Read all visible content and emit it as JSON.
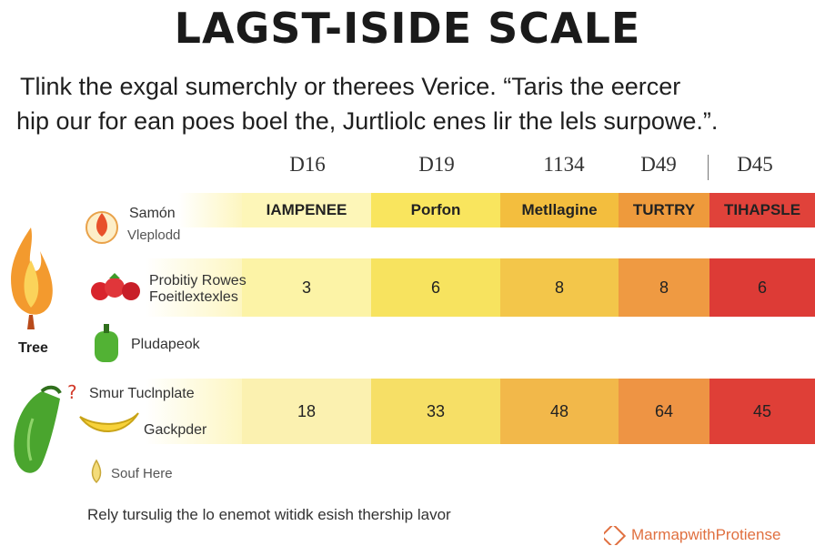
{
  "title": "LAGST-ISIDE SCALE",
  "intro": {
    "line1": "Tlink the exgal sumerchly or therees Verice. “Taris the eercer",
    "line2": "hip our for ean poes boel the, Jurtliolc enes lir the lels surpowe.”."
  },
  "columns": [
    "D16",
    "D19",
    "1134",
    "D49",
    "D45"
  ],
  "level_labels": [
    "IAMPENEE",
    "Porfon",
    "Metllagine",
    "TURTRY",
    "TIHAPSLE"
  ],
  "colors": {
    "level": [
      "#fdf6b8",
      "#f9e55e",
      "#f3be3e",
      "#ee9a3c",
      "#e0423a"
    ],
    "row1": [
      "#fcf3a6",
      "#f7e35f",
      "#f3c64a",
      "#ef9a42",
      "#dd3b36"
    ],
    "row2": [
      "#fbf1b0",
      "#f6df66",
      "#f2b84a",
      "#ee9444",
      "#df3f37"
    ]
  },
  "rows": [
    {
      "label": "Samón",
      "sub": "Vleplodd"
    },
    {
      "label": "Probitiy Rowes",
      "sub": "Foeitlextexles"
    },
    {
      "label": "Pludapeok"
    },
    {
      "label": "Smur Tuclnplate",
      "sub": "Gackpder"
    },
    {
      "label": "Souf Here"
    }
  ],
  "group_label": "Tree",
  "chart_data": {
    "type": "table",
    "title": "LAGST-ISIDE SCALE",
    "categories": [
      "D16",
      "D19",
      "1134",
      "D49",
      "D45"
    ],
    "series": [
      {
        "name": "Probitiy Rowes",
        "values": [
          3,
          6,
          8,
          8,
          6
        ]
      },
      {
        "name": "Smur Tuclnplate",
        "values": [
          18,
          33,
          48,
          64,
          45
        ]
      }
    ]
  },
  "footer": "Rely tursulig the lo enemot witidk esish thership lavor",
  "brand": "MarmapwithProtiense"
}
